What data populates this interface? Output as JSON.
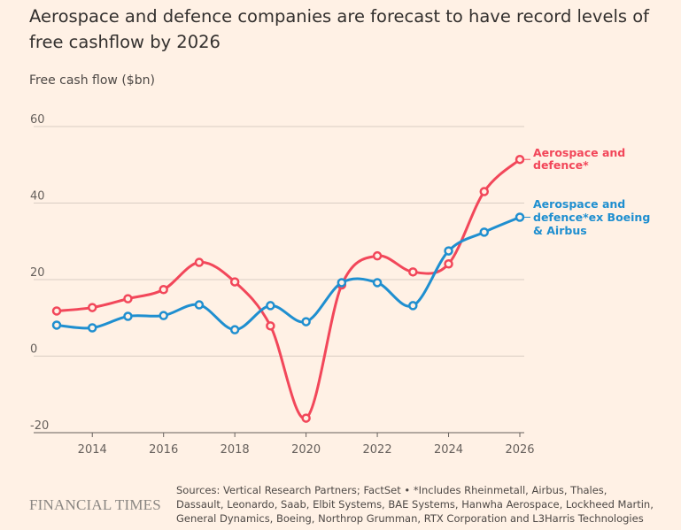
{
  "chart_data": {
    "type": "line",
    "title": "Aerospace and defence companies are forecast to have record levels of free cashflow by 2026",
    "ylabel": "Free cash flow ($bn)",
    "xlabel": "",
    "x": [
      2013,
      2014,
      2015,
      2016,
      2017,
      2018,
      2019,
      2020,
      2021,
      2022,
      2023,
      2024,
      2025,
      2026
    ],
    "xticks": [
      2014,
      2016,
      2018,
      2020,
      2022,
      2024,
      2026
    ],
    "yticks": [
      60,
      40,
      20,
      0,
      -20
    ],
    "ylim": [
      -20,
      60
    ],
    "xlim": [
      2013,
      2026
    ],
    "grid": true,
    "legend": "inline-right",
    "series": [
      {
        "name": "Aerospace and defence*",
        "color": "#f2475a",
        "values": [
          11.8,
          12.7,
          15.0,
          17.4,
          24.5,
          19.4,
          7.9,
          -16.2,
          18.6,
          26.2,
          22.0,
          24.1,
          43.0,
          51.4
        ]
      },
      {
        "name": "Aerospace and defence*ex Boeing & Airbus",
        "color": "#1f8fd0",
        "values": [
          8.1,
          7.4,
          10.4,
          10.6,
          13.4,
          6.9,
          13.2,
          9.0,
          19.2,
          19.2,
          13.2,
          27.5,
          32.4,
          36.3
        ]
      }
    ]
  },
  "legend_lines": [
    [
      "Aerospace and",
      "defence*"
    ],
    [
      "Aerospace and",
      "defence*ex Boeing",
      "& Airbus"
    ]
  ],
  "footer": {
    "logo": "FINANCIAL TIMES",
    "source": "Sources: Vertical Research Partners; FactSet • *Includes Rheinmetall, Airbus, Thales, Dassault, Leonardo, Saab, Elbit Systems, BAE Systems, Hanwha Aerospace, Lockheed Martin, General Dynamics, Boeing, Northrop Grumman, RTX Corporation and L3Harris Technologies"
  }
}
